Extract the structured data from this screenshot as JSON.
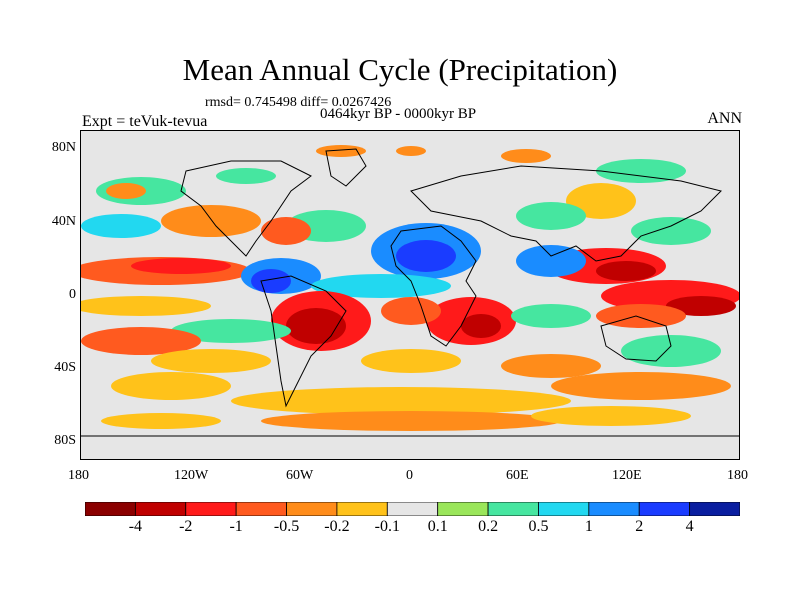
{
  "title": "Mean Annual Cycle (Precipitation)",
  "stats": "rmsd= 0.745498 diff= 0.0267426",
  "period": "0464kyr BP - 0000kyr BP",
  "expt": "Expt = teVuk-tevua",
  "season": "ANN",
  "x_ticks": [
    "180",
    "120W",
    "60W",
    "0",
    "60E",
    "120E",
    "180"
  ],
  "y_ticks": [
    "80N",
    "40N",
    "0",
    "40S",
    "80S"
  ],
  "colorbar": {
    "levels": [
      "-4",
      "-2",
      "-1",
      "-0.5",
      "-0.2",
      "-0.1",
      "0.1",
      "0.2",
      "0.5",
      "1",
      "2",
      "4"
    ],
    "colors": [
      "#8b0000",
      "#c00000",
      "#ff1a1a",
      "#ff5a1f",
      "#ff8c1a",
      "#ffc21a",
      "#e6e6e6",
      "#9ae65a",
      "#46e6a0",
      "#22d8f0",
      "#1a8cff",
      "#1a3cff",
      "#0a1ea0"
    ]
  },
  "map_colors": {
    "background": "#e6e6e6",
    "coast": "#000000"
  }
}
